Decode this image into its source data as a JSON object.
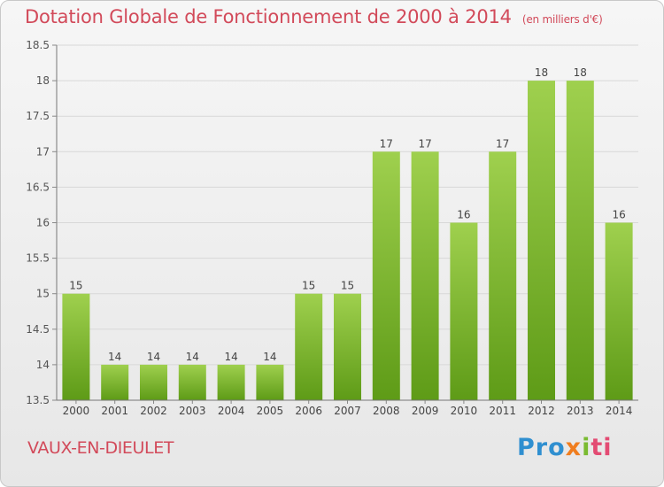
{
  "title": "Dotation Globale de Fonctionnement de 2000 à 2014",
  "title_unit": "(en milliers d'€)",
  "commune": "VAUX-EN-DIEULET",
  "logo": {
    "text": "Proxiti",
    "colors": [
      "#2f8fd0",
      "#f07d1e",
      "#7abb32",
      "#e34b73"
    ]
  },
  "colors": {
    "title": "#d24a5a",
    "bar_top": "#9fd04e",
    "bar_bottom": "#5e9b17",
    "grid": "#d8d8d8"
  },
  "chart_data": {
    "type": "bar",
    "categories": [
      "2000",
      "2001",
      "2002",
      "2003",
      "2004",
      "2005",
      "2006",
      "2007",
      "2008",
      "2009",
      "2010",
      "2011",
      "2012",
      "2013",
      "2014"
    ],
    "values": [
      15,
      14,
      14,
      14,
      14,
      14,
      15,
      15,
      17,
      17,
      16,
      17,
      18,
      18,
      16
    ],
    "ylim": [
      13.5,
      18.5
    ],
    "yticks": [
      "13.5",
      "14",
      "14.5",
      "15",
      "15.5",
      "16",
      "16.5",
      "17",
      "17.5",
      "18",
      "18.5"
    ],
    "grid": true
  }
}
